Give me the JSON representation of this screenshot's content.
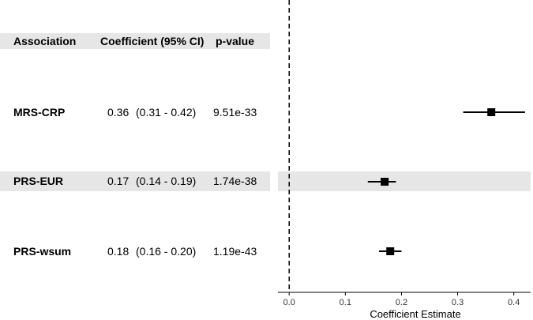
{
  "table": {
    "headers": {
      "association": "Association",
      "coefficient": "Coefficient (95% CI)",
      "pvalue": "p-value"
    },
    "rows": [
      {
        "name": "MRS-CRP",
        "coef": "0.36",
        "ci": "(0.31 - 0.42)",
        "pvalue": "9.51e-33"
      },
      {
        "name": "PRS-EUR",
        "coef": "0.17",
        "ci": "(0.14 - 0.19)",
        "pvalue": "1.74e-38"
      },
      {
        "name": "PRS-wsum",
        "coef": "0.18",
        "ci": "(0.16 - 0.20)",
        "pvalue": "1.19e-43"
      }
    ]
  },
  "chart_data": {
    "type": "scatter",
    "subtype": "forest-plot",
    "xlabel": "Coefficient Estimate",
    "ylabel": "",
    "title": "",
    "xlim": [
      -0.02,
      0.43
    ],
    "xticks": [
      "0.0",
      "0.1",
      "0.2",
      "0.3",
      "0.4"
    ],
    "reference_line": 0,
    "grid": false,
    "series": [
      {
        "points": [
          {
            "label": "MRS-CRP",
            "estimate": 0.36,
            "lower": 0.31,
            "upper": 0.42
          },
          {
            "label": "PRS-EUR",
            "estimate": 0.17,
            "lower": 0.14,
            "upper": 0.19
          },
          {
            "label": "PRS-wsum",
            "estimate": 0.18,
            "lower": 0.16,
            "upper": 0.2
          }
        ]
      }
    ]
  },
  "colors": {
    "band": "#e6e6e6",
    "marker": "#000000",
    "axis": "#000000"
  }
}
